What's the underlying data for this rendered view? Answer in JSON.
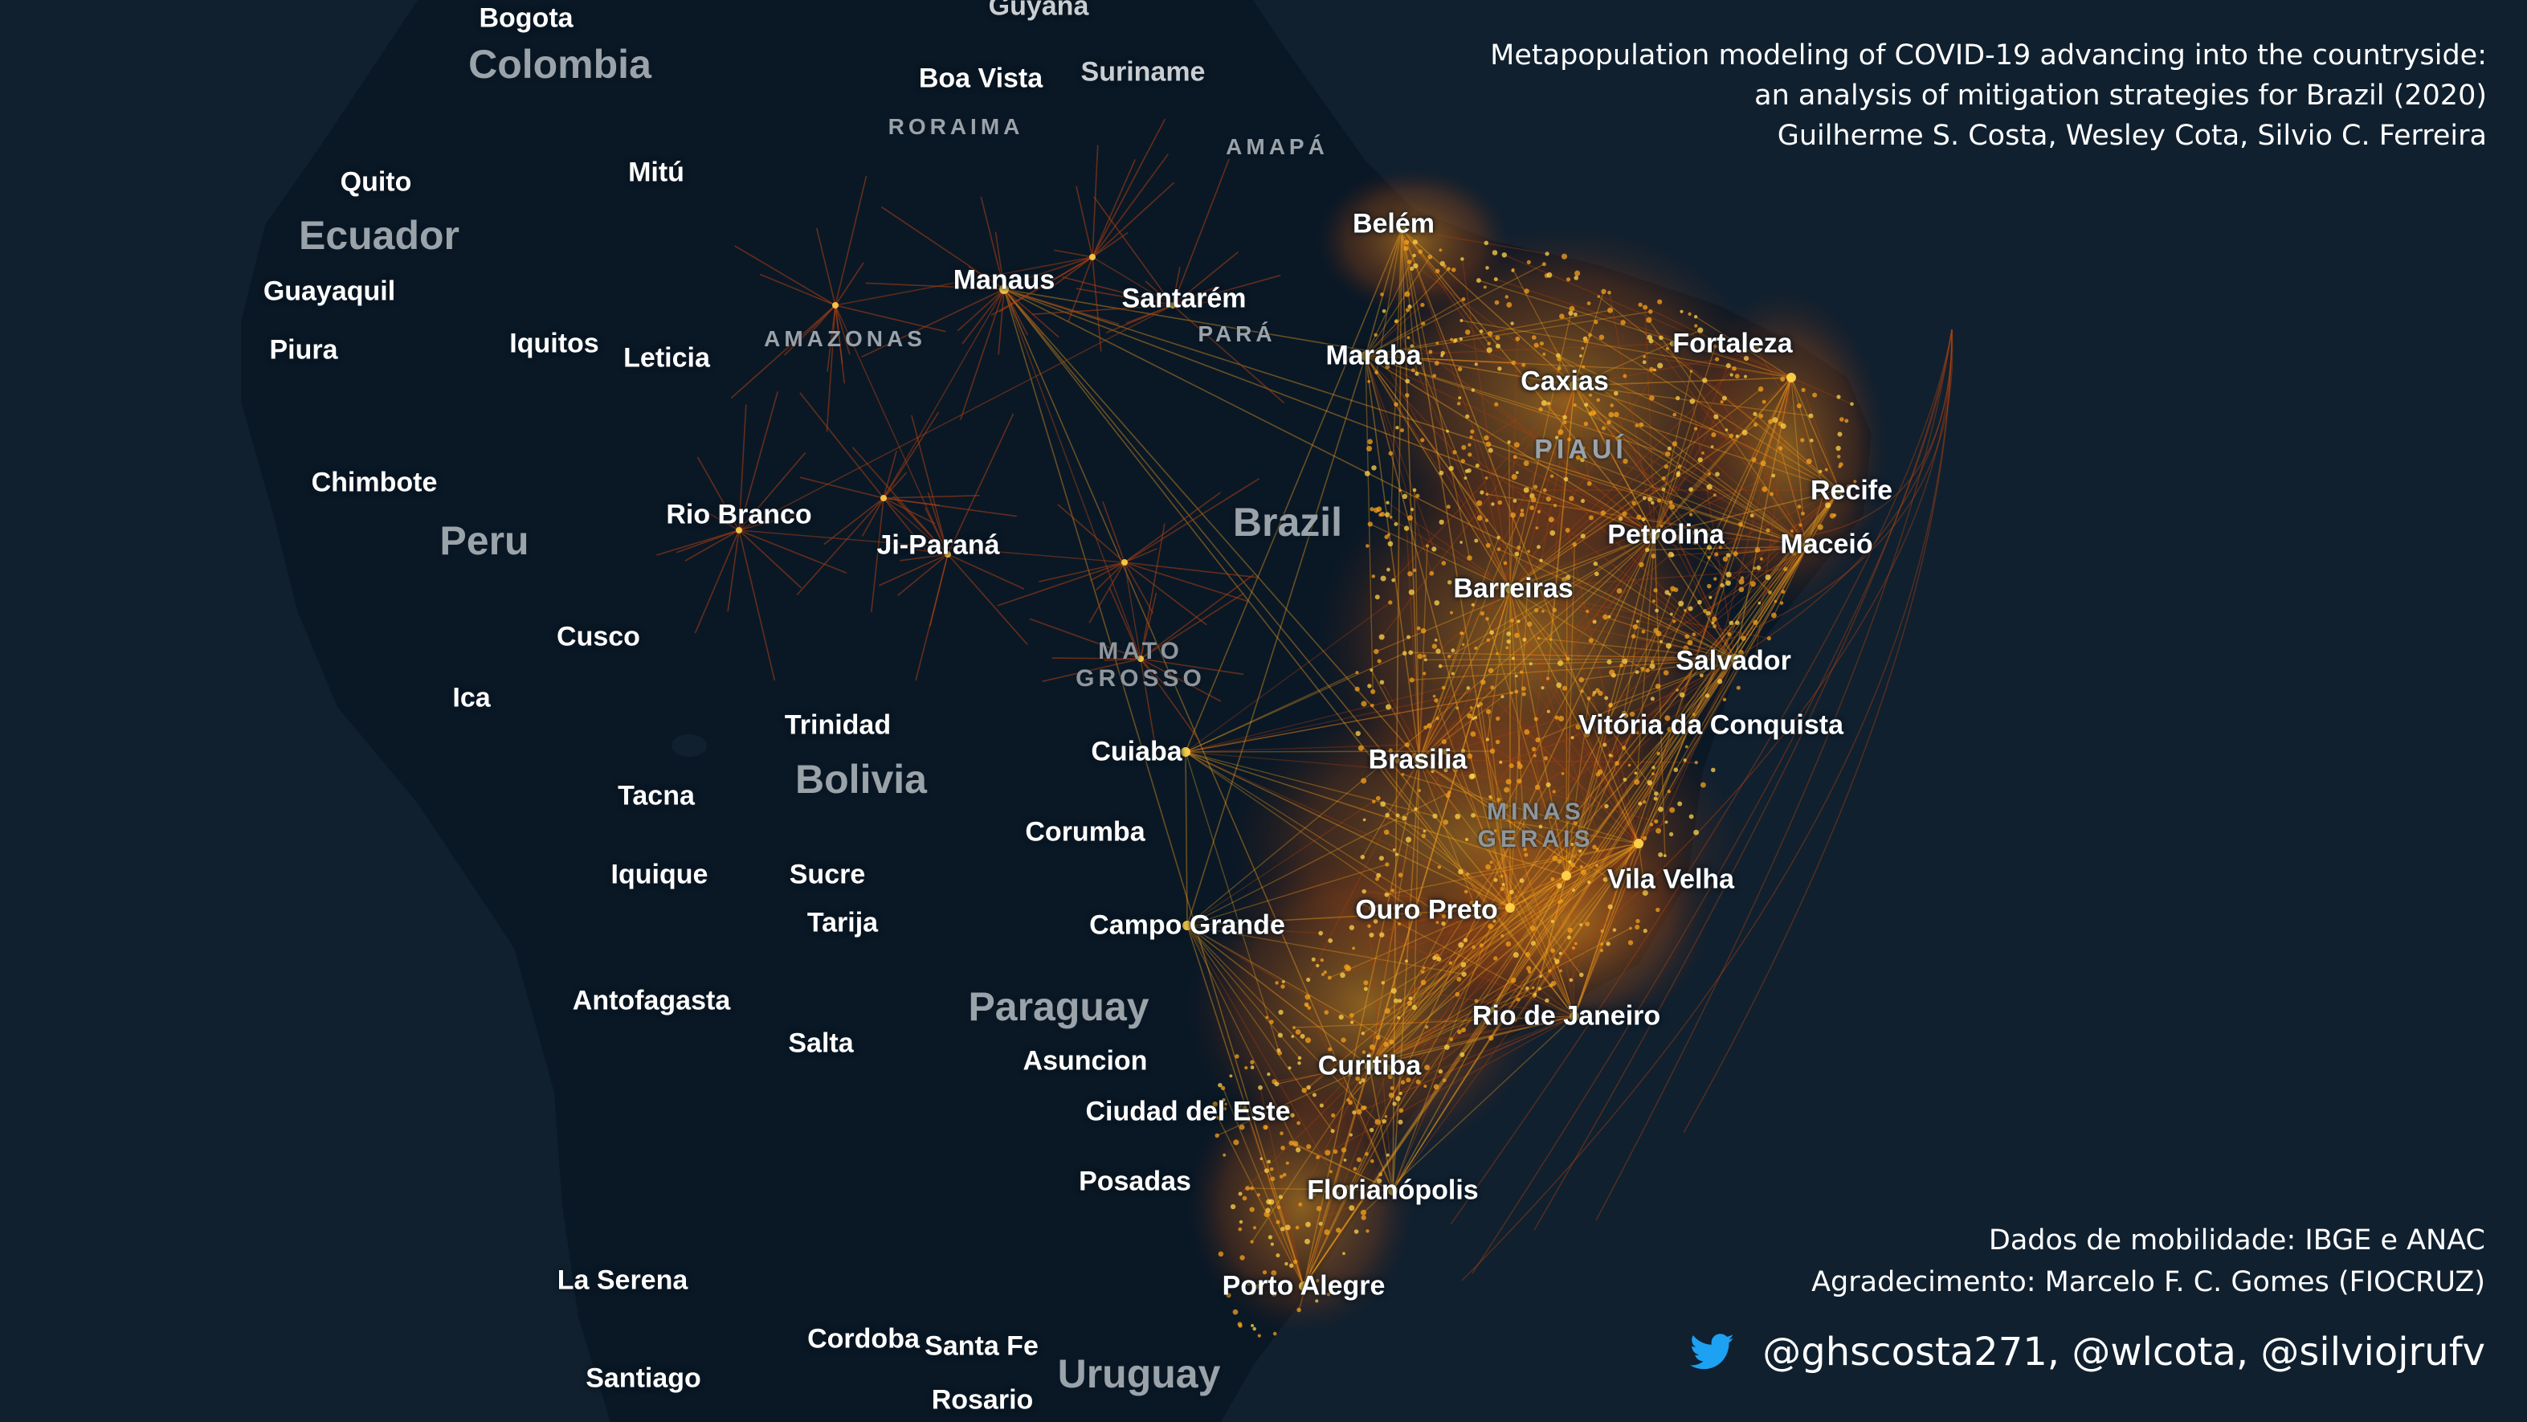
{
  "title": {
    "line1": "Metapopulation modeling of COVID-19 advancing into the countryside:",
    "line2": "an analysis of mitigation strategies for Brazil (2020)",
    "authors": "Guilherme S. Costa, Wesley Cota, Silvio C. Ferreira"
  },
  "credits": {
    "data_source": "Dados de mobilidade: IBGE e ANAC",
    "acknowledgment": "Agradecimento: Marcelo F. C. Gomes (FIOCRUZ)"
  },
  "social": {
    "icon": "twitter-bird-icon",
    "handles": "@ghscosta271, @wlcota, @silviojrufv"
  },
  "map": {
    "countries": [
      "Colombia",
      "Ecuador",
      "Peru",
      "Bolivia",
      "Brazil",
      "Paraguay",
      "Uruguay"
    ],
    "states": [
      "RORAIMA",
      "AMAPÁ",
      "AMAZONAS",
      "PARÁ"
    ],
    "cities": [
      "Bogota",
      "Guyana",
      "Suriname",
      "Boa Vista",
      "Quito",
      "Mitú",
      "Guayaquil",
      "Piura",
      "Iquitos",
      "Leticia",
      "Manaus",
      "Santarém",
      "Belém",
      "Maraba",
      "Fortaleza",
      "Caxias",
      "Chimbote",
      "Rio Branco",
      "Ji-Paraná",
      "Recife",
      "Petrolina",
      "Maceió",
      "Barreiras",
      "Cusco",
      "Ica",
      "Salvador",
      "Trinidad",
      "Cuiaba",
      "Vitória da Conquista",
      "Brasilia",
      "Tacna",
      "Corumba",
      "Iquique",
      "Sucre",
      "Vila Velha",
      "Tarija",
      "Campo Grande",
      "Ouro Preto",
      "Antofagasta",
      "Rio de Janeiro",
      "Salta",
      "Asuncion",
      "Curitiba",
      "Ciudad del Este",
      "Posadas",
      "Florianópolis",
      "La Serena",
      "Porto Alegre",
      "Cordoba",
      "Santa Fe",
      "Santiago",
      "Rosario"
    ],
    "region_labels": {
      "mato_grosso": [
        "MATO",
        "GROSSO"
      ],
      "minas_gerais": [
        "MINAS",
        "GERAIS"
      ],
      "piaui": "PIAUÍ"
    },
    "colors": {
      "ocean": "#10202f",
      "land": "#0a1826",
      "network_core": "#ffd44a",
      "network_mid": "#f7a21b",
      "network_edge": "#b0400e"
    }
  }
}
